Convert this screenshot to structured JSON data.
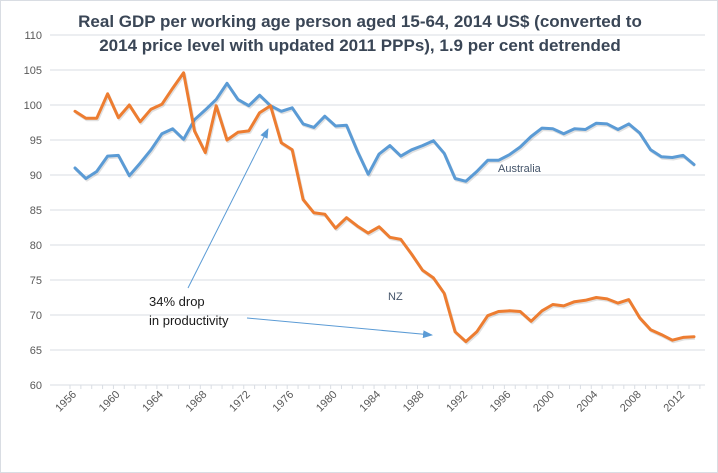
{
  "chart_data": {
    "type": "line",
    "title_line1": "Real GDP per working age person aged 15-64, 2014 US$ (converted to",
    "title_line2": "2014 price level with updated 2011 PPPs), 1.9 per cent detrended",
    "xlabel": "",
    "ylabel": "",
    "ylim": [
      60,
      110
    ],
    "yticks": [
      60,
      65,
      70,
      75,
      80,
      85,
      90,
      95,
      100,
      105,
      110
    ],
    "xlim": [
      1956,
      2013
    ],
    "xtick_labels": [
      "1956",
      "1960",
      "1964",
      "1968",
      "1972",
      "1976",
      "1980",
      "1984",
      "1988",
      "1992",
      "1996",
      "2000",
      "2004",
      "2008",
      "2012"
    ],
    "grid": true,
    "legend": "none (inline series labels)",
    "x": [
      1956,
      1957,
      1958,
      1959,
      1960,
      1961,
      1962,
      1963,
      1964,
      1965,
      1966,
      1967,
      1968,
      1969,
      1970,
      1971,
      1972,
      1973,
      1974,
      1975,
      1976,
      1977,
      1978,
      1979,
      1980,
      1981,
      1982,
      1983,
      1984,
      1985,
      1986,
      1987,
      1988,
      1989,
      1990,
      1991,
      1992,
      1993,
      1994,
      1995,
      1996,
      1997,
      1998,
      1999,
      2000,
      2001,
      2002,
      2003,
      2004,
      2005,
      2006,
      2007,
      2008,
      2009,
      2010,
      2011,
      2012,
      2013
    ],
    "series": [
      {
        "name": "Australia",
        "color": "#5b9bd5",
        "values": [
          91,
          89.5,
          90.5,
          92.7,
          92.8,
          89.9,
          91.7,
          93.6,
          95.9,
          96.6,
          95.1,
          97.9,
          99.3,
          100.8,
          103.1,
          100.8,
          99.9,
          101.4,
          99.9,
          99.1,
          99.6,
          97.3,
          96.8,
          98.4,
          97,
          97.1,
          93.4,
          90.1,
          93,
          94.2,
          92.7,
          93.6,
          94.2,
          94.9,
          93.1,
          89.5,
          89.1,
          90.5,
          92.1,
          92.1,
          92.9,
          94,
          95.5,
          96.7,
          96.6,
          95.9,
          96.6,
          96.5,
          97.4,
          97.3,
          96.5,
          97.3,
          96,
          93.6,
          92.6,
          92.5,
          92.8,
          91.5
        ]
      },
      {
        "name": "NZ",
        "color": "#ed7d31",
        "values": [
          99.1,
          98.1,
          98.1,
          101.6,
          98.2,
          100,
          97.6,
          99.4,
          100.1,
          102.4,
          104.6,
          96.3,
          93.2,
          99.9,
          95,
          96.1,
          96.3,
          98.9,
          99.9,
          94.6,
          93.6,
          86.5,
          84.6,
          84.4,
          82.4,
          83.9,
          82.7,
          81.7,
          82.6,
          81.1,
          80.8,
          78.7,
          76.4,
          75.3,
          73.1,
          67.6,
          66.2,
          67.6,
          69.9,
          70.5,
          70.6,
          70.5,
          69.1,
          70.6,
          71.5,
          71.3,
          71.9,
          72.1,
          72.5,
          72.3,
          71.7,
          72.2,
          69.6,
          67.9,
          67.2,
          66.4,
          66.8,
          66.9
        ]
      }
    ],
    "series_labels": {
      "australia": "Australia",
      "nz": "NZ"
    },
    "annotation": {
      "line1": "34% drop",
      "line2": "in productivity",
      "arrow_color": "#5b9bd5"
    }
  }
}
